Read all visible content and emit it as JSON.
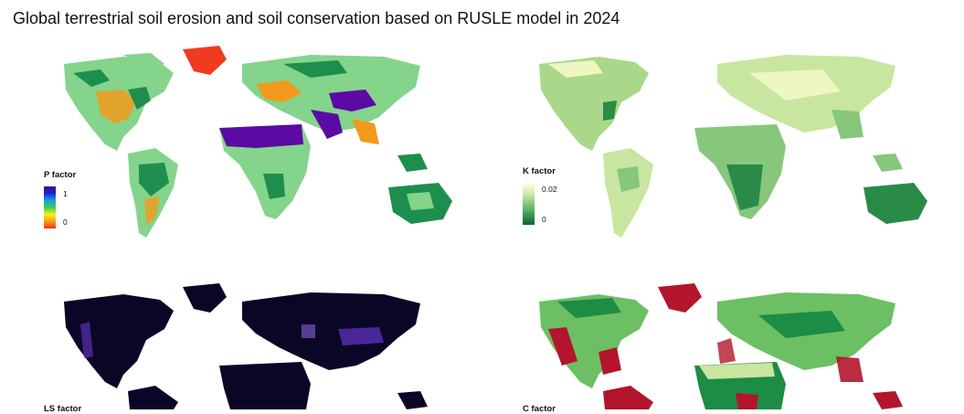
{
  "title": "Global terrestrial soil erosion and soil conservation based on RUSLE model in 2024",
  "panels": [
    {
      "id": "p",
      "legend_title": "P factor",
      "legend_max": "1",
      "legend_min": "0",
      "colors": {
        "base": "#84d48c",
        "high": "#5b0aa3",
        "mid": "#f29a1c",
        "forest": "#1e8e4e",
        "low": "#f03b20",
        "scale": [
          "#3b0a8f",
          "#1727d4",
          "#1ea0e0",
          "#39d14a",
          "#f5f214",
          "#f59b1a",
          "#f0340c"
        ]
      }
    },
    {
      "id": "k",
      "legend_title": "K factor",
      "legend_max": "0.02",
      "legend_min": "0",
      "colors": {
        "base": "#a9d88a",
        "light": "#eef6c2",
        "dark": "#2a8a48",
        "scale": [
          "#ffffe0",
          "#d0ecaa",
          "#86c77c",
          "#3b9a58",
          "#10603a"
        ]
      }
    },
    {
      "id": "ls",
      "legend_title": "LS factor",
      "colors": {
        "base": "#0a0726",
        "accent": "#5a2fb4",
        "light": "#8c63e0"
      }
    },
    {
      "id": "c",
      "legend_title": "C factor",
      "colors": {
        "base": "#6cbf63",
        "dark": "#1d8c44",
        "red": "#b3162c",
        "light": "#c8e6a0"
      }
    }
  ]
}
